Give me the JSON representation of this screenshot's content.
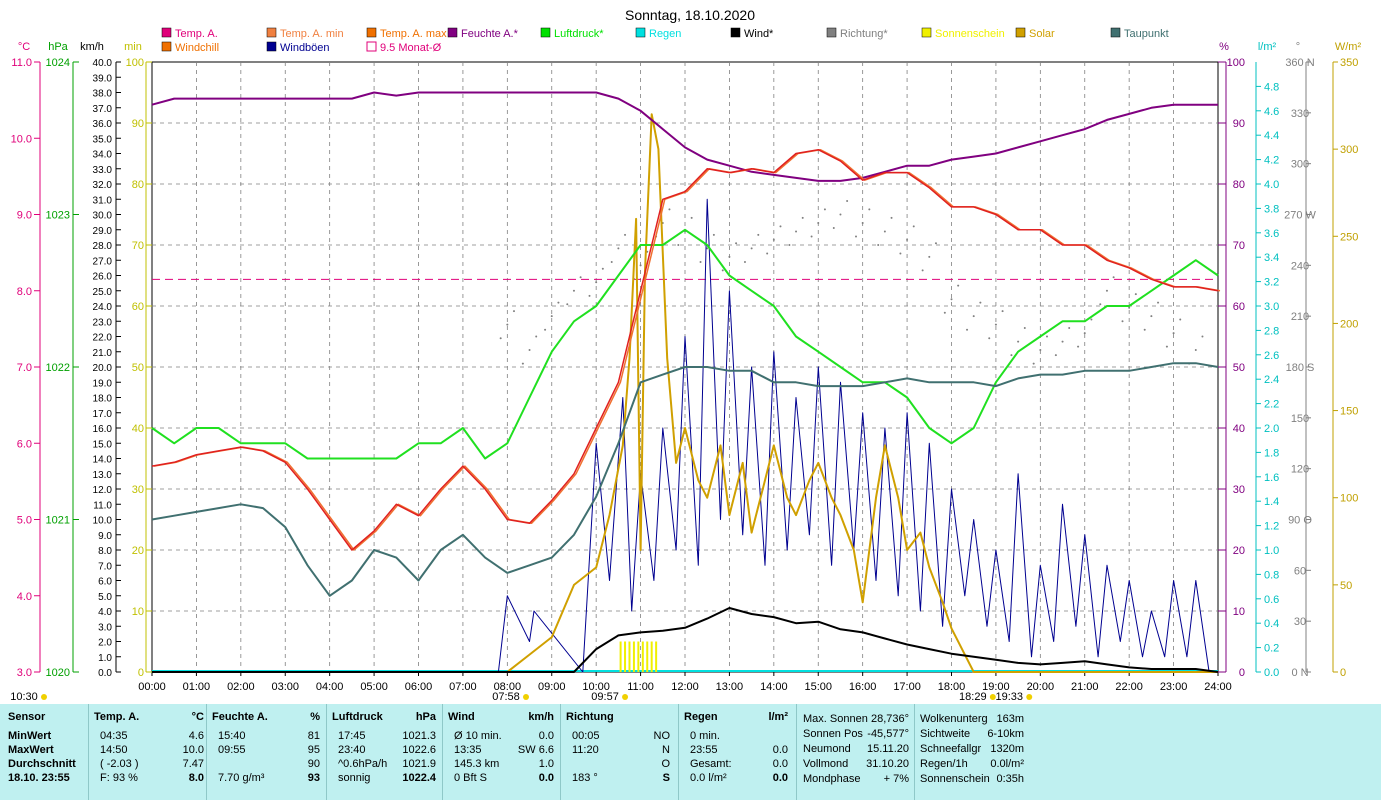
{
  "chart_data": {
    "type": "line",
    "title": "Sonntag, 18.10.2020",
    "x_range": [
      "00:00",
      "24:00"
    ],
    "x_ticks": [
      "00:00",
      "01:00",
      "02:00",
      "03:00",
      "04:00",
      "05:00",
      "06:00",
      "07:00",
      "08:00",
      "09:00",
      "10:00",
      "11:00",
      "12:00",
      "13:00",
      "14:00",
      "15:00",
      "16:00",
      "17:00",
      "18:00",
      "19:00",
      "20:00",
      "21:00",
      "22:00",
      "23:00",
      "24:00"
    ],
    "legend": [
      {
        "name": "Temp. A.",
        "color": "#e0007a",
        "marker": "filled"
      },
      {
        "name": "Temp. A. min",
        "color": "#f08040",
        "marker": "filled"
      },
      {
        "name": "Temp. A. max",
        "color": "#f07000",
        "marker": "filled"
      },
      {
        "name": "Feuchte A.*",
        "color": "#800080",
        "marker": "filled"
      },
      {
        "name": "Luftdruck*",
        "color": "#00e000",
        "marker": "filled"
      },
      {
        "name": "Regen",
        "color": "#00e0e0",
        "marker": "filled"
      },
      {
        "name": "Wind*",
        "color": "#000000",
        "marker": "filled"
      },
      {
        "name": "Richtung*",
        "color": "#808080",
        "marker": "filled"
      },
      {
        "name": "Sonnenschein",
        "color": "#f0f000",
        "marker": "filled"
      },
      {
        "name": "Solar",
        "color": "#d0a000",
        "marker": "filled"
      },
      {
        "name": "Taupunkt",
        "color": "#407070",
        "marker": "filled"
      },
      {
        "name": "Windchill",
        "color": "#f07000",
        "marker": "filled"
      },
      {
        "name": "Windböen",
        "color": "#000090",
        "marker": "filled"
      },
      {
        "name": "9.5 Monat-Ø",
        "color": "#e0007a",
        "marker": "open"
      }
    ],
    "axes": {
      "temp": {
        "unit": "°C",
        "color": "#e0007a",
        "min": 3.0,
        "max": 11.0,
        "ticks": [
          "3.0",
          "4.0",
          "5.0",
          "6.0",
          "7.0",
          "8.0",
          "9.0",
          "10.0",
          "11.0"
        ]
      },
      "pressure": {
        "unit": "hPa",
        "color": "#00a000",
        "min": 1020,
        "max": 1024,
        "ticks": [
          "1020",
          "1021",
          "1022",
          "1023",
          "1024"
        ]
      },
      "wind": {
        "unit": "km/h",
        "color": "#000000",
        "min": 0,
        "max": 40,
        "step": 1
      },
      "sun": {
        "unit": "min",
        "color": "#c0c000",
        "min": 0,
        "max": 100,
        "ticks": [
          "0",
          "10",
          "20",
          "30",
          "40",
          "50",
          "60",
          "70",
          "80",
          "90",
          "100"
        ]
      },
      "humidity": {
        "unit": "%",
        "color": "#800080",
        "min": 0,
        "max": 100,
        "ticks": [
          "0",
          "10",
          "20",
          "30",
          "40",
          "50",
          "60",
          "70",
          "80",
          "90",
          "100"
        ]
      },
      "rain": {
        "unit": "l/m²",
        "color": "#00c0c0",
        "min": 0,
        "max": 5,
        "ticks": [
          "0.0",
          "0.2",
          "0.4",
          "0.6",
          "0.8",
          "1.0",
          "1.2",
          "1.4",
          "1.6",
          "1.8",
          "2.0",
          "2.2",
          "2.4",
          "2.6",
          "2.8",
          "3.0",
          "3.2",
          "3.4",
          "3.6",
          "3.8",
          "4.0",
          "4.2",
          "4.4",
          "4.6",
          "4.8"
        ]
      },
      "direction": {
        "unit": "°",
        "color": "#808080",
        "min": 0,
        "max": 360,
        "ticks": [
          "0 N",
          "30",
          "60",
          "90 O",
          "120",
          "150",
          "180 S",
          "210",
          "240",
          "270 W",
          "300",
          "330",
          "360 N"
        ]
      },
      "solar": {
        "unit": "W/m²",
        "color": "#c0a000",
        "min": 0,
        "max": 350,
        "ticks": [
          "0",
          "50",
          "100",
          "150",
          "200",
          "250",
          "300",
          "350"
        ]
      }
    },
    "monthly_avg_temp": 8.15,
    "series": {
      "humidity": {
        "x": [
          0,
          0.5,
          1,
          2,
          3,
          4,
          4.5,
          5,
          5.5,
          6,
          6.5,
          7,
          8,
          9,
          10,
          10.5,
          11,
          11.5,
          12,
          12.5,
          13,
          13.5,
          14,
          14.5,
          15,
          15.5,
          16,
          16.5,
          17,
          17.5,
          18,
          18.5,
          19,
          19.5,
          20,
          20.5,
          21,
          21.5,
          22,
          22.5,
          23,
          23.5,
          24
        ],
        "y": [
          93,
          94,
          94,
          94,
          94,
          94,
          94,
          95,
          94.5,
          95,
          95,
          95,
          95,
          95,
          95,
          94,
          92,
          89,
          86,
          84,
          83,
          82,
          81.5,
          81,
          80.5,
          80.5,
          81,
          82,
          83,
          83,
          84,
          84.5,
          85,
          86,
          87,
          88,
          89,
          90.5,
          91.5,
          92.5,
          93,
          93,
          93
        ]
      },
      "pressure": {
        "x": [
          0,
          0.5,
          1,
          1.5,
          2,
          2.5,
          3,
          3.5,
          4,
          4.5,
          5,
          5.5,
          6,
          6.5,
          7,
          7.5,
          8,
          8.5,
          9,
          9.5,
          10,
          10.5,
          11,
          11.5,
          12,
          12.5,
          13,
          13.5,
          14,
          14.5,
          15,
          15.5,
          16,
          16.5,
          17,
          17.5,
          18,
          18.5,
          19,
          19.5,
          20,
          20.5,
          21,
          21.5,
          22,
          22.5,
          23,
          23.5,
          24
        ],
        "y": [
          1021.6,
          1021.5,
          1021.6,
          1021.6,
          1021.5,
          1021.5,
          1021.5,
          1021.4,
          1021.4,
          1021.4,
          1021.4,
          1021.4,
          1021.5,
          1021.5,
          1021.6,
          1021.4,
          1021.5,
          1021.8,
          1022.1,
          1022.3,
          1022.4,
          1022.6,
          1022.8,
          1022.8,
          1022.9,
          1022.8,
          1022.6,
          1022.5,
          1022.4,
          1022.2,
          1022.1,
          1022.0,
          1021.9,
          1021.9,
          1021.8,
          1021.6,
          1021.5,
          1021.6,
          1021.9,
          1022.1,
          1022.2,
          1022.3,
          1022.3,
          1022.4,
          1022.4,
          1022.5,
          1022.6,
          1022.7,
          1022.6
        ]
      },
      "temp": {
        "x": [
          0,
          0.5,
          1,
          1.5,
          2,
          2.5,
          3,
          3.5,
          4,
          4.5,
          5,
          5.5,
          6,
          6.5,
          7,
          7.5,
          8,
          8.5,
          9,
          9.5,
          10,
          10.5,
          11,
          11.5,
          12,
          12.5,
          13,
          13.5,
          14,
          14.5,
          15,
          15.5,
          16,
          16.5,
          17,
          17.5,
          18,
          18.5,
          19,
          19.5,
          20,
          20.5,
          21,
          21.5,
          22,
          22.5,
          23,
          23.5,
          24
        ],
        "y": [
          5.7,
          5.75,
          5.85,
          5.9,
          5.95,
          5.9,
          5.75,
          5.4,
          5.0,
          4.6,
          4.85,
          5.2,
          5.05,
          5.4,
          5.7,
          5.4,
          5.0,
          4.95,
          5.25,
          5.6,
          6.2,
          6.8,
          8.0,
          9.2,
          9.3,
          9.6,
          9.55,
          9.6,
          9.55,
          9.8,
          9.85,
          9.7,
          9.45,
          9.55,
          9.55,
          9.35,
          9.1,
          9.1,
          9.0,
          8.8,
          8.8,
          8.6,
          8.6,
          8.4,
          8.3,
          8.15,
          8.05,
          8.05,
          8.0
        ]
      },
      "dewpoint": {
        "x": [
          0,
          0.5,
          1,
          1.5,
          2,
          2.5,
          3,
          3.5,
          4,
          4.5,
          5,
          5.5,
          6,
          6.5,
          7,
          7.5,
          8,
          8.5,
          9,
          9.5,
          10,
          10.5,
          11,
          11.5,
          12,
          12.5,
          13,
          13.5,
          14,
          14.5,
          15,
          15.5,
          16,
          16.5,
          17,
          17.5,
          18,
          18.5,
          19,
          19.5,
          20,
          20.5,
          21,
          21.5,
          22,
          22.5,
          23,
          23.5,
          24
        ],
        "y": [
          5.0,
          5.05,
          5.1,
          5.15,
          5.2,
          5.15,
          4.9,
          4.4,
          4.0,
          4.2,
          4.6,
          4.5,
          4.2,
          4.6,
          4.8,
          4.5,
          4.3,
          4.4,
          4.5,
          4.8,
          5.3,
          6.0,
          6.8,
          6.9,
          7.0,
          7.0,
          6.95,
          6.95,
          6.8,
          6.8,
          6.75,
          6.75,
          6.75,
          6.8,
          6.85,
          6.8,
          6.8,
          6.8,
          6.75,
          6.85,
          6.9,
          6.9,
          6.95,
          6.95,
          6.95,
          7.0,
          7.05,
          7.05,
          7.0
        ]
      },
      "wind": {
        "x": [
          0,
          8,
          9,
          9.5,
          10,
          10.5,
          11,
          11.5,
          12,
          12.5,
          13,
          13.5,
          14,
          14.5,
          15,
          15.5,
          16,
          16.5,
          17,
          17.5,
          18,
          18.5,
          19,
          19.5,
          20,
          20.5,
          21,
          21.5,
          22,
          22.5,
          23,
          23.5,
          24
        ],
        "y": [
          0,
          0,
          0,
          0,
          1.5,
          2.4,
          2.6,
          2.7,
          2.9,
          3.5,
          4.2,
          3.8,
          3.6,
          3.2,
          3.3,
          2.8,
          2.6,
          2.2,
          1.8,
          1.5,
          1.2,
          1.0,
          0.8,
          0.6,
          0.5,
          0.6,
          0.7,
          0.5,
          0.3,
          0.2,
          0.2,
          0.2,
          0
        ]
      },
      "gusts": {
        "x": [
          0,
          7.8,
          8.0,
          8.5,
          8.6,
          9.7,
          10.0,
          10.3,
          10.6,
          10.8,
          11.0,
          11.3,
          11.5,
          11.8,
          12.0,
          12.3,
          12.5,
          12.8,
          13.0,
          13.3,
          13.5,
          13.8,
          14.0,
          14.3,
          14.5,
          14.8,
          15.0,
          15.3,
          15.5,
          15.8,
          16.0,
          16.3,
          16.5,
          16.8,
          17.0,
          17.3,
          17.5,
          17.8,
          18.0,
          18.3,
          18.5,
          18.8,
          19.0,
          19.3,
          19.5,
          19.8,
          20.0,
          20.3,
          20.5,
          20.8,
          21.0,
          21.3,
          21.5,
          21.8,
          22.0,
          22.3,
          22.5,
          22.8,
          23.0,
          23.3,
          23.5,
          23.8,
          24
        ],
        "y": [
          0,
          0,
          5.0,
          2.0,
          4.0,
          0,
          15.0,
          6.0,
          18.0,
          4.0,
          13.0,
          6.0,
          16.0,
          8.0,
          22.0,
          7.0,
          31.0,
          10.0,
          25.0,
          9.0,
          20.0,
          7.0,
          21.0,
          8.0,
          18.0,
          9.0,
          20.0,
          7.0,
          19.0,
          8.0,
          17.0,
          6.0,
          16.0,
          5.0,
          17.0,
          4.0,
          15.0,
          3.0,
          12.0,
          5.0,
          10.0,
          3.0,
          8.0,
          2.0,
          13.0,
          1.0,
          7.0,
          2.0,
          11.0,
          3.0,
          9.0,
          1.0,
          7.0,
          2.0,
          6.0,
          1.0,
          4.0,
          1.0,
          6.0,
          1.0,
          6.0,
          0,
          0
        ]
      },
      "solar": {
        "x": [
          0,
          8.0,
          8.5,
          9.0,
          9.5,
          10.0,
          10.3,
          10.6,
          10.75,
          10.9,
          11.0,
          11.1,
          11.25,
          11.4,
          11.6,
          11.8,
          12.0,
          12.3,
          12.5,
          12.8,
          13.0,
          13.3,
          13.5,
          13.8,
          14.0,
          14.3,
          14.5,
          14.8,
          15.0,
          15.3,
          15.5,
          15.8,
          16.0,
          16.3,
          16.5,
          16.8,
          17.0,
          17.3,
          17.5,
          17.8,
          18.0,
          18.3,
          18.5,
          19.0,
          24
        ],
        "y": [
          0,
          0,
          10,
          20,
          50,
          60,
          90,
          130,
          180,
          260,
          70,
          230,
          320,
          300,
          180,
          120,
          140,
          110,
          100,
          130,
          90,
          120,
          80,
          110,
          130,
          100,
          90,
          110,
          120,
          100,
          90,
          70,
          40,
          100,
          130,
          100,
          70,
          80,
          60,
          40,
          25,
          10,
          0,
          0,
          0
        ]
      },
      "direction_points": {
        "x": [
          8.0,
          8.5,
          9.0,
          9.5,
          10.0,
          10.5,
          11.0,
          11.5,
          12.0,
          12.5,
          13.0,
          13.5,
          14.0,
          14.5,
          15.0,
          15.5,
          16.0,
          16.5,
          17.0,
          17.5,
          18.0,
          18.5,
          19.0,
          19.5,
          20.0,
          20.5,
          21.0,
          21.5,
          22.0,
          22.5,
          23.0,
          23.5
        ],
        "y": [
          205,
          190,
          210,
          225,
          230,
          250,
          240,
          265,
          260,
          250,
          245,
          250,
          255,
          260,
          265,
          270,
          265,
          260,
          255,
          245,
          220,
          210,
          205,
          195,
          190,
          195,
          200,
          225,
          215,
          210,
          200,
          190
        ]
      },
      "sunshine_bars": {
        "x": [
          10.55,
          10.65,
          10.75,
          10.85,
          10.95,
          11.05,
          11.15,
          11.25,
          11.35
        ],
        "y": [
          5,
          5,
          5,
          5,
          5,
          5,
          5,
          5,
          5
        ]
      }
    },
    "markers": {
      "left": "10:30",
      "sunrise": "07:58",
      "noon": "09:57",
      "sunset": "18:29",
      "moon": "19:33"
    }
  },
  "panel": {
    "sensor": {
      "header": "Sensor",
      "rows": [
        "MinWert",
        "MaxWert",
        "Durchschnitt",
        "18.10. 23:55"
      ]
    },
    "temp": {
      "header": "Temp. A.",
      "unit": "°C",
      "rows": [
        [
          "04:35",
          "4.6"
        ],
        [
          "14:50",
          "10.0"
        ],
        [
          "( -2.03 )",
          "7.47"
        ],
        [
          "F: 93 %",
          "8.0"
        ]
      ]
    },
    "feuchte": {
      "header": "Feuchte A.",
      "unit": "%",
      "rows": [
        [
          "15:40",
          "81"
        ],
        [
          "09:55",
          "95"
        ],
        [
          "",
          "90"
        ],
        [
          "7.70 g/m³",
          "93"
        ]
      ]
    },
    "luftdruck": {
      "header": "Luftdruck",
      "unit": "hPa",
      "rows": [
        [
          "17:45",
          "1021.3"
        ],
        [
          "23:40",
          "1022.6"
        ],
        [
          "^0.6hPa/h",
          "1021.9"
        ],
        [
          "sonnig",
          "1022.4"
        ]
      ]
    },
    "wind": {
      "header": "Wind",
      "unit": "km/h",
      "rows": [
        [
          "Ø 10 min.",
          "0.0"
        ],
        [
          "13:35",
          "SW 6.6"
        ],
        [
          "145.3 km",
          "1.0"
        ],
        [
          "0 Bft S",
          "0.0"
        ]
      ]
    },
    "richtung": {
      "header": "Richtung",
      "rows": [
        [
          "00:05",
          "NO"
        ],
        [
          "11:20",
          "N"
        ],
        [
          "",
          "O"
        ],
        [
          "183 °",
          "S"
        ]
      ]
    },
    "regen": {
      "header": "Regen",
      "unit": "l/m²",
      "rows": [
        [
          "0 min.",
          ""
        ],
        [
          "23:55",
          "0.0"
        ],
        [
          "Gesamt:",
          "0.0"
        ],
        [
          "0.0 l/m²",
          "0.0"
        ]
      ]
    },
    "astro": {
      "rows": [
        [
          "Max. Sonnen",
          "28,736°"
        ],
        [
          "Sonnen Pos",
          "-45,577°"
        ],
        [
          "Neumond",
          "15.11.20"
        ],
        [
          "Vollmond",
          "31.10.20"
        ],
        [
          "Mondphase",
          "+ 7%"
        ]
      ]
    },
    "misc": {
      "rows": [
        [
          "Wolkenunterg",
          "163m"
        ],
        [
          "Sichtweite",
          "6-10km"
        ],
        [
          "Schneefallgr",
          "1320m"
        ],
        [
          "Regen/1h",
          "0.0l/m²"
        ],
        [
          "Sonnenschein",
          "0:35h"
        ]
      ]
    }
  }
}
